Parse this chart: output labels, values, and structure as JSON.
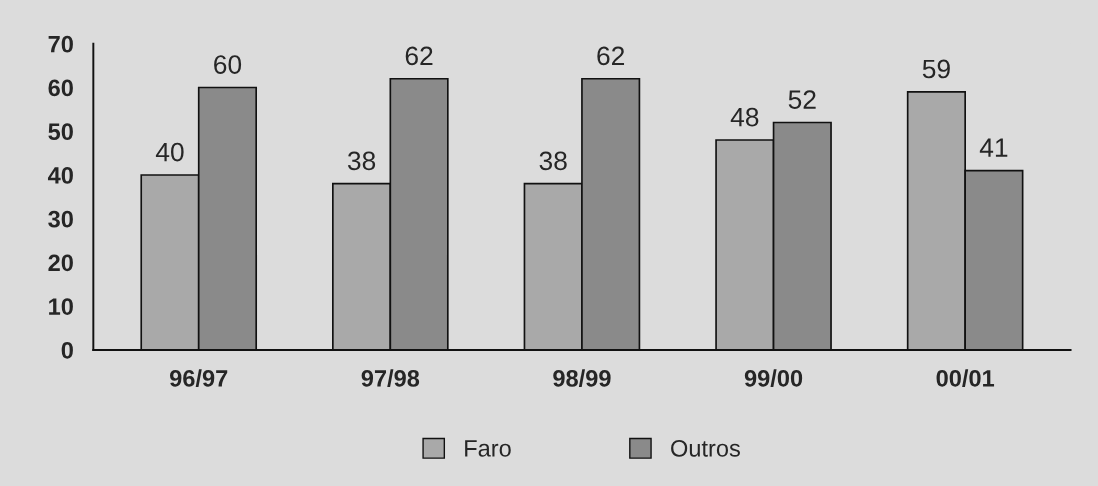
{
  "chart_data": {
    "type": "bar",
    "categories": [
      "96/97",
      "97/98",
      "98/99",
      "99/00",
      "00/01"
    ],
    "series": [
      {
        "name": "Faro",
        "color": "#a9a9a9",
        "values": [
          40,
          38,
          38,
          48,
          59
        ]
      },
      {
        "name": "Outros",
        "color": "#8a8a8a",
        "values": [
          60,
          62,
          62,
          52,
          41
        ]
      }
    ],
    "ylim": [
      0,
      70
    ],
    "yticks": [
      0,
      10,
      20,
      30,
      40,
      50,
      60,
      70
    ],
    "grid": false,
    "legend": "bottom",
    "data_labels": true
  }
}
